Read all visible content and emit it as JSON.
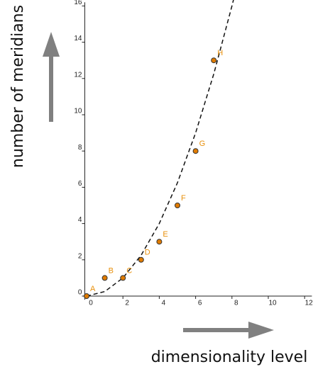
{
  "chart_data": {
    "type": "scatter",
    "x_label": "dimensionality level",
    "y_label": "number of meridians",
    "x": [
      0,
      1,
      2,
      3,
      4,
      5,
      6,
      7
    ],
    "values": [
      0,
      1,
      1,
      2,
      3,
      5,
      8,
      13
    ],
    "point_labels": [
      "A",
      "B",
      "C",
      "D",
      "E",
      "F",
      "G",
      "H"
    ],
    "color": "#e07b00",
    "curve": {
      "x": [
        0,
        1,
        2,
        3,
        4,
        5,
        6,
        7,
        8,
        8.1
      ],
      "y": [
        0,
        0.25,
        1,
        2.25,
        4,
        6.25,
        9,
        12.25,
        16,
        16.4
      ]
    },
    "xlim": [
      -0.1,
      12.4
    ],
    "ylim": [
      -0.2,
      16.2
    ],
    "xticks": [
      0,
      2,
      4,
      6,
      8,
      10,
      12
    ],
    "yticks": [
      0,
      2,
      4,
      6,
      8,
      10,
      12,
      14,
      16
    ]
  }
}
